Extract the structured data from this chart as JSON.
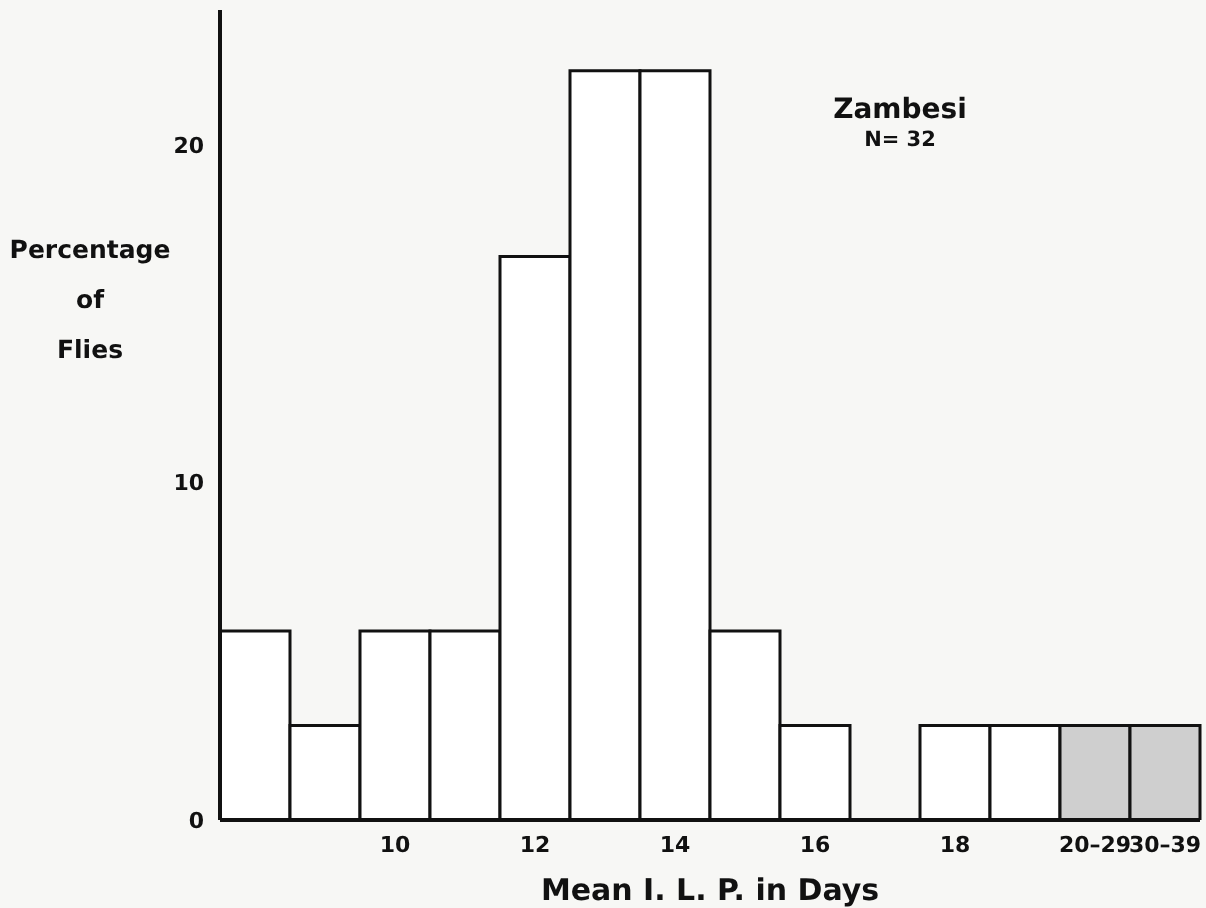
{
  "chart_data": {
    "type": "bar",
    "xlabel": "Mean I. L. P. in Days",
    "ylabel": "Percentage of Flies",
    "annotations": [
      "Zambesi",
      "N= 32"
    ],
    "categories": [
      null,
      null,
      "10",
      null,
      "12",
      null,
      "14",
      null,
      "16",
      null,
      "18",
      null,
      "20–29",
      "30–39"
    ],
    "values": [
      5.6,
      2.8,
      5.6,
      5.6,
      16.7,
      22.2,
      22.2,
      5.6,
      2.8,
      0,
      2.8,
      2.8,
      2.8,
      2.8
    ],
    "colors": [
      "#ffffff",
      "#ffffff",
      "#ffffff",
      "#ffffff",
      "#ffffff",
      "#ffffff",
      "#ffffff",
      "#ffffff",
      "#ffffff",
      "#ffffff",
      "#ffffff",
      "#ffffff",
      "#cfcfcf",
      "#cfcfcf"
    ],
    "ylim": [
      0,
      24
    ],
    "yticks": [
      0,
      10,
      20
    ],
    "grid": false,
    "legend": false
  }
}
